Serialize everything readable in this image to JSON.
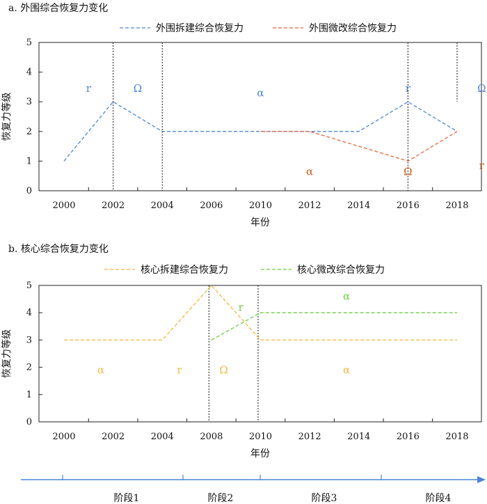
{
  "chart_data": [
    {
      "type": "line",
      "title": "a. 外围综合恢复力变化",
      "xlabel": "年份",
      "ylabel": "恢复力等级",
      "ylim": [
        0,
        5
      ],
      "yticks": [
        "0",
        "1",
        "2",
        "3",
        "4",
        "5"
      ],
      "categories": [
        "2000",
        "2002",
        "2004",
        "2006",
        "2010",
        "2012",
        "2014",
        "2016",
        "2018"
      ],
      "series": [
        {
          "name": "外围拆建综合恢复力",
          "color": "#4a86d8",
          "points": [
            [
              "2000",
              1
            ],
            [
              "2002",
              3
            ],
            [
              "2004",
              2
            ],
            [
              "2006",
              2
            ],
            [
              "2010",
              2
            ],
            [
              "2014",
              2
            ],
            [
              "2016",
              3
            ],
            [
              "2018",
              2
            ]
          ]
        },
        {
          "name": "外围微改综合恢复力",
          "color": "#e8643c",
          "points": [
            [
              "2010",
              2
            ],
            [
              "2012",
              2
            ],
            [
              "2016",
              1
            ],
            [
              "2018",
              2
            ]
          ]
        }
      ],
      "phase_lines": [
        {
          "x": 2,
          "from": 3
        },
        {
          "x": 4,
          "from": 2
        },
        {
          "x": 12,
          "from": 0
        },
        {
          "x": 14,
          "from": 2
        },
        {
          "x": 16,
          "from": 0
        }
      ],
      "annotations": [
        {
          "text": "r",
          "x": 1.0,
          "y": 3.45,
          "color": "#4a86d8"
        },
        {
          "text": "Ω",
          "x": 3.0,
          "y": 3.45,
          "color": "#4a86d8"
        },
        {
          "text": "α",
          "x": 8.0,
          "y": 3.3,
          "color": "#4a86d8"
        },
        {
          "text": "r",
          "x": 14.0,
          "y": 3.45,
          "color": "#4a86d8"
        },
        {
          "text": "Ω",
          "x": 17.0,
          "y": 3.45,
          "color": "#4a86d8"
        },
        {
          "text": "α",
          "x": 10.0,
          "y": 0.65,
          "color": "#c55a11"
        },
        {
          "text": "Ω",
          "x": 14.0,
          "y": 0.65,
          "color": "#c55a11"
        },
        {
          "text": "r",
          "x": 17.0,
          "y": 0.85,
          "color": "#c55a11"
        }
      ]
    },
    {
      "type": "line",
      "title": "b. 核心综合恢复力变化",
      "xlabel": "年份",
      "ylabel": "恢复力等级",
      "ylim": [
        0,
        5
      ],
      "yticks": [
        "0",
        "1",
        "2",
        "3",
        "4",
        "5"
      ],
      "categories": [
        "2000",
        "2002",
        "2004",
        "2008",
        "2010",
        "2012",
        "2014",
        "2016",
        "2018"
      ],
      "series": [
        {
          "name": "核心拆建综合恢复力",
          "color": "#f5b335",
          "points": [
            [
              "2000",
              3
            ],
            [
              "2004",
              3
            ],
            [
              "2008",
              5
            ],
            [
              "2010",
              3
            ],
            [
              "2018",
              3
            ]
          ]
        },
        {
          "name": "核心微改综合恢复力",
          "color": "#6ccc3c",
          "points": [
            [
              "2008",
              3
            ],
            [
              "2010",
              4
            ],
            [
              "2018",
              4
            ]
          ]
        }
      ],
      "phase_lines": [
        {
          "x": 3.8,
          "from": 0
        },
        {
          "x": 5.9,
          "from": 0
        },
        {
          "x": 7.9,
          "from": 0
        }
      ],
      "annotations": [
        {
          "text": "α",
          "x": 1.5,
          "y": 1.9,
          "color": "#f0b840"
        },
        {
          "text": "r",
          "x": 4.7,
          "y": 1.9,
          "color": "#f0b840"
        },
        {
          "text": "Ω",
          "x": 6.5,
          "y": 1.9,
          "color": "#f0b840"
        },
        {
          "text": "α",
          "x": 11.5,
          "y": 1.9,
          "color": "#f0b840"
        },
        {
          "text": "r",
          "x": 7.2,
          "y": 4.2,
          "color": "#6ccc3c"
        },
        {
          "text": "α",
          "x": 11.5,
          "y": 4.6,
          "color": "#6ccc3c"
        }
      ]
    }
  ],
  "stages": {
    "labels": [
      "阶段1",
      "阶段2",
      "阶段3",
      "阶段4"
    ],
    "color": "#4a86d8"
  }
}
